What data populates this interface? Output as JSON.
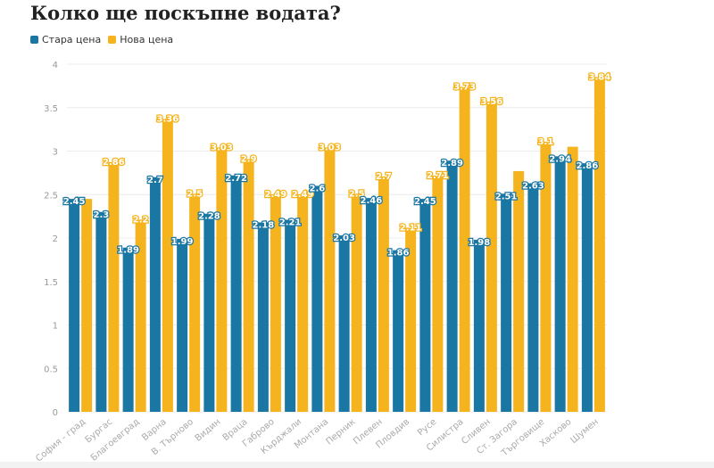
{
  "chart_data": {
    "type": "bar",
    "title": "Колко ще поскъпне водата?",
    "categories": [
      "София - град",
      "Бургас",
      "Благоевград",
      "Варна",
      "В. Търново",
      "Видин",
      "Враца",
      "Габрово",
      "Кърджали",
      "Монтана",
      "Перник",
      "Плевен",
      "Пловдив",
      "Русе",
      "Силистра",
      "Сливен",
      "Ст. Загора",
      "Търговище",
      "Хасково",
      "Шумен"
    ],
    "series": [
      {
        "name": "Стара цена",
        "color": "#1a76a3",
        "values": [
          2.45,
          2.3,
          1.89,
          2.7,
          1.99,
          2.28,
          2.72,
          2.18,
          2.21,
          2.6,
          2.03,
          2.46,
          1.86,
          2.45,
          2.89,
          1.98,
          2.51,
          2.63,
          2.94,
          2.86
        ],
        "labeled": [
          true,
          true,
          true,
          true,
          true,
          true,
          true,
          true,
          true,
          true,
          true,
          true,
          true,
          true,
          true,
          true,
          true,
          true,
          true,
          true
        ]
      },
      {
        "name": "Нова цена",
        "color": "#f5b41d",
        "values": [
          2.45,
          2.86,
          2.2,
          3.36,
          2.5,
          3.03,
          2.9,
          2.49,
          2.49,
          3.03,
          2.5,
          2.7,
          2.11,
          2.71,
          3.73,
          3.56,
          2.77,
          3.1,
          3.05,
          3.84
        ],
        "labeled": [
          false,
          true,
          true,
          true,
          true,
          true,
          true,
          true,
          true,
          true,
          true,
          true,
          true,
          true,
          true,
          true,
          false,
          true,
          false,
          true
        ]
      }
    ],
    "ylim": [
      0,
      4
    ],
    "yticks": [
      "0",
      "0.5",
      "1",
      "1.5",
      "2",
      "2.5",
      "3",
      "3.5",
      "4"
    ],
    "grid": true,
    "legend": "top-left"
  }
}
